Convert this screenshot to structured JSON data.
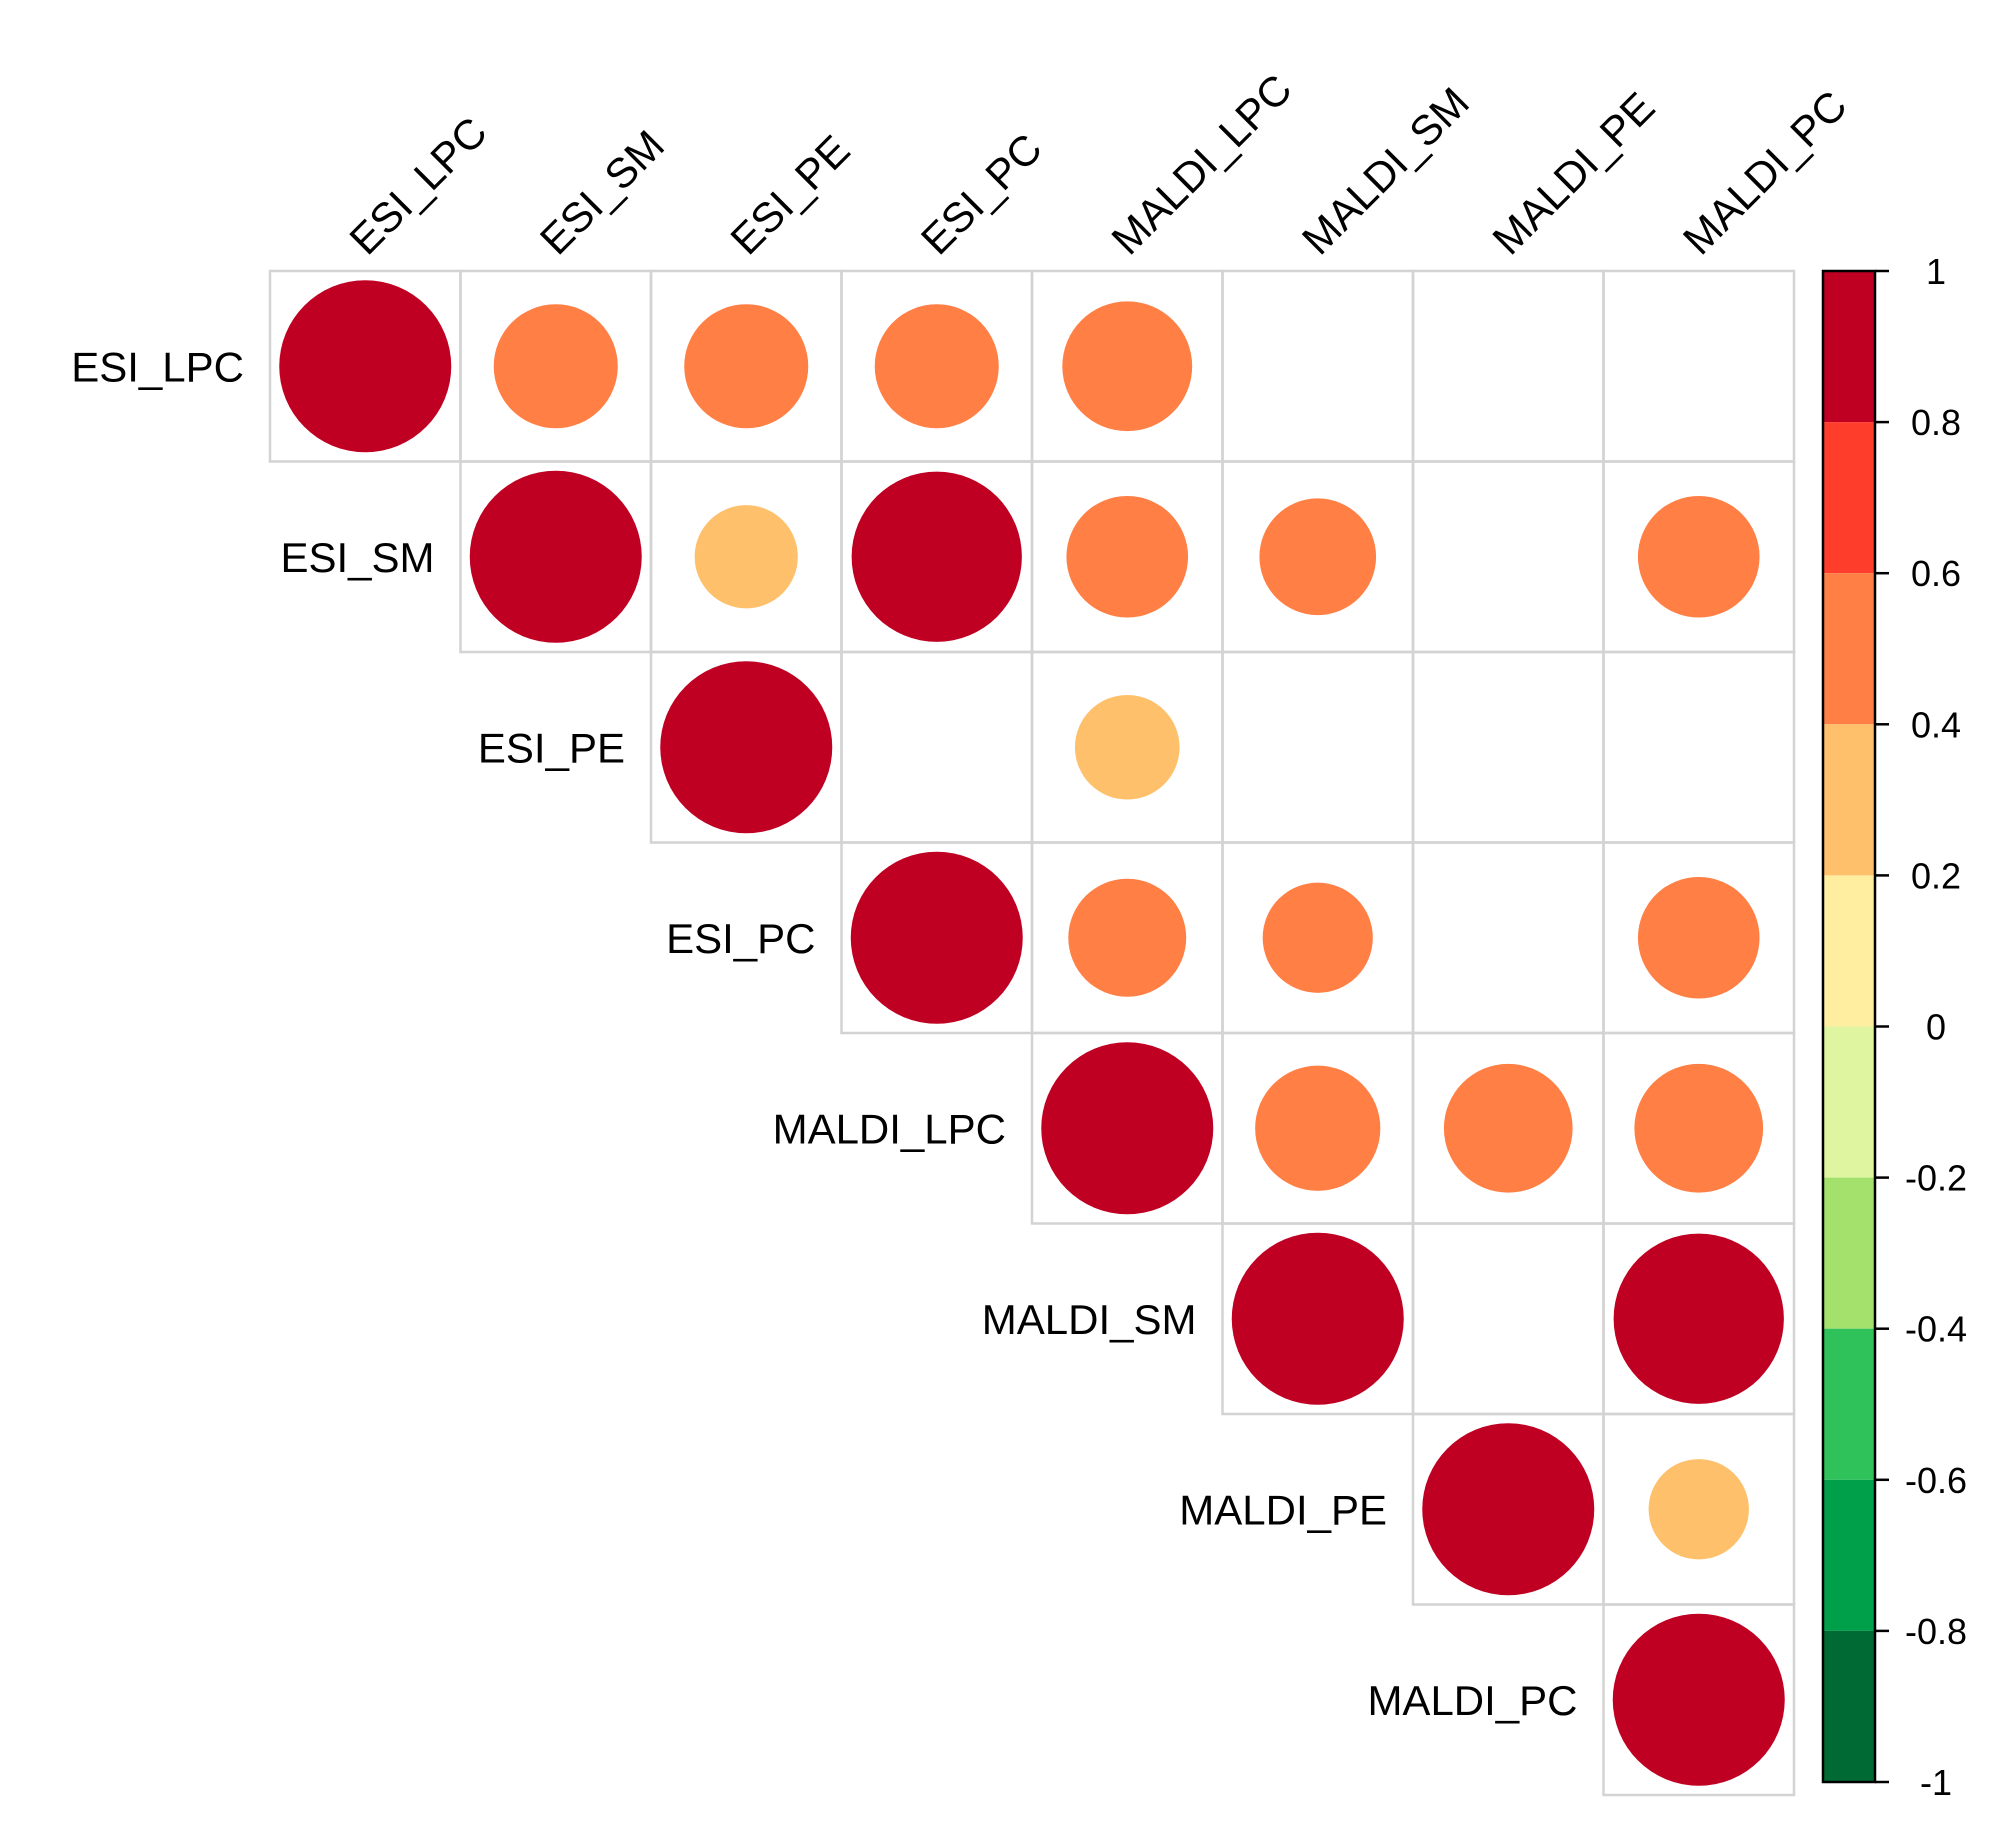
{
  "chart_data": {
    "type": "heatmap",
    "subtype": "correlation-matrix-circles-upper-triangle",
    "title": "",
    "variables": [
      "ESI_LPC",
      "ESI_SM",
      "ESI_PE",
      "ESI_PC",
      "MALDI_LPC",
      "MALDI_SM",
      "MALDI_PE",
      "MALDI_PC"
    ],
    "cells": [
      {
        "row": "ESI_LPC",
        "col": "ESI_LPC",
        "value": 1.0
      },
      {
        "row": "ESI_LPC",
        "col": "ESI_SM",
        "value": 0.52
      },
      {
        "row": "ESI_LPC",
        "col": "ESI_PE",
        "value": 0.52
      },
      {
        "row": "ESI_LPC",
        "col": "ESI_PC",
        "value": 0.52
      },
      {
        "row": "ESI_LPC",
        "col": "MALDI_LPC",
        "value": 0.57
      },
      {
        "row": "ESI_SM",
        "col": "ESI_SM",
        "value": 1.0
      },
      {
        "row": "ESI_SM",
        "col": "ESI_PE",
        "value": 0.36
      },
      {
        "row": "ESI_SM",
        "col": "ESI_PC",
        "value": 0.98
      },
      {
        "row": "ESI_SM",
        "col": "MALDI_LPC",
        "value": 0.5
      },
      {
        "row": "ESI_SM",
        "col": "MALDI_SM",
        "value": 0.46
      },
      {
        "row": "ESI_SM",
        "col": "MALDI_PC",
        "value": 0.5
      },
      {
        "row": "ESI_PE",
        "col": "ESI_PE",
        "value": 1.0
      },
      {
        "row": "ESI_PE",
        "col": "MALDI_LPC",
        "value": 0.37
      },
      {
        "row": "ESI_PC",
        "col": "ESI_PC",
        "value": 1.0
      },
      {
        "row": "ESI_PC",
        "col": "MALDI_LPC",
        "value": 0.47
      },
      {
        "row": "ESI_PC",
        "col": "MALDI_SM",
        "value": 0.41
      },
      {
        "row": "ESI_PC",
        "col": "MALDI_PC",
        "value": 0.5
      },
      {
        "row": "MALDI_LPC",
        "col": "MALDI_LPC",
        "value": 1.0
      },
      {
        "row": "MALDI_LPC",
        "col": "MALDI_SM",
        "value": 0.53
      },
      {
        "row": "MALDI_LPC",
        "col": "MALDI_PE",
        "value": 0.56
      },
      {
        "row": "MALDI_LPC",
        "col": "MALDI_PC",
        "value": 0.56
      },
      {
        "row": "MALDI_SM",
        "col": "MALDI_SM",
        "value": 1.0
      },
      {
        "row": "MALDI_SM",
        "col": "MALDI_PC",
        "value": 0.98
      },
      {
        "row": "MALDI_PE",
        "col": "MALDI_PE",
        "value": 1.0
      },
      {
        "row": "MALDI_PE",
        "col": "MALDI_PC",
        "value": 0.34
      },
      {
        "row": "MALDI_PC",
        "col": "MALDI_PC",
        "value": 1.0
      }
    ],
    "colorbar": {
      "range": [
        -1,
        1
      ],
      "ticks": [
        "1",
        "0.8",
        "0.6",
        "0.4",
        "0.2",
        "0",
        "-0.2",
        "-0.4",
        "-0.6",
        "-0.8",
        "-1"
      ],
      "tick_values": [
        1,
        0.8,
        0.6,
        0.4,
        0.2,
        0,
        -0.2,
        -0.4,
        -0.6,
        -0.8,
        -1
      ],
      "bins": [
        {
          "from": 0.8,
          "to": 1.0,
          "color": "#C00023"
        },
        {
          "from": 0.6,
          "to": 0.8,
          "color": "#FF3D2B"
        },
        {
          "from": 0.4,
          "to": 0.6,
          "color": "#FF7F45"
        },
        {
          "from": 0.2,
          "to": 0.4,
          "color": "#FFC06C"
        },
        {
          "from": 0.0,
          "to": 0.2,
          "color": "#FFEEA0"
        },
        {
          "from": -0.2,
          "to": 0.0,
          "color": "#DFF5A0"
        },
        {
          "from": -0.4,
          "to": -0.2,
          "color": "#A4E06C"
        },
        {
          "from": -0.6,
          "to": -0.4,
          "color": "#30C25A"
        },
        {
          "from": -0.8,
          "to": -0.6,
          "color": "#00A04A"
        },
        {
          "from": -1.0,
          "to": -0.8,
          "color": "#006A35"
        }
      ],
      "placement": "right"
    },
    "grid": true,
    "grid_color": "#D3D3D3"
  }
}
